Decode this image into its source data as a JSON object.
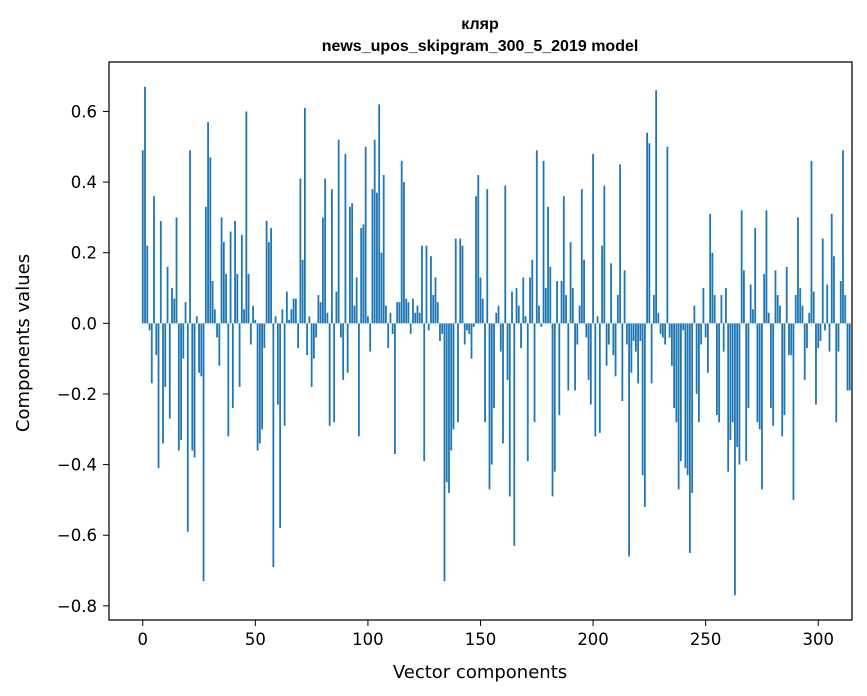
{
  "chart_data": {
    "type": "bar",
    "title": "кляр",
    "subtitle": "news_upos_skipgram_300_5_2019 model",
    "xlabel": "Vector components",
    "ylabel": "Components values",
    "xlim": [
      -15,
      315
    ],
    "ylim": [
      -0.84,
      0.74
    ],
    "xticks": [
      0,
      50,
      100,
      150,
      200,
      250,
      300
    ],
    "yticks": [
      -0.8,
      -0.6,
      -0.4,
      -0.2,
      0.0,
      0.2,
      0.4,
      0.6
    ],
    "xtick_labels": [
      "0",
      "50",
      "100",
      "150",
      "200",
      "250",
      "300"
    ],
    "ytick_labels": [
      "−0.8",
      "−0.6",
      "−0.4",
      "−0.2",
      "0.0",
      "0.2",
      "0.4",
      "0.6"
    ],
    "bar_color": "#1f77b4",
    "values": [
      0.49,
      0.67,
      0.22,
      -0.02,
      -0.17,
      0.36,
      -0.09,
      -0.41,
      0.29,
      -0.34,
      -0.18,
      0.16,
      -0.27,
      0.1,
      0.07,
      0.3,
      -0.36,
      -0.33,
      -0.1,
      0.06,
      -0.59,
      0.49,
      -0.36,
      -0.38,
      0.02,
      -0.14,
      -0.15,
      -0.73,
      0.33,
      0.57,
      0.47,
      0.12,
      0.04,
      -0.04,
      -0.12,
      0.3,
      0.23,
      0.14,
      -0.32,
      0.26,
      -0.24,
      0.29,
      0.14,
      -0.18,
      0.25,
      0.04,
      0.6,
      0.14,
      -0.06,
      0.05,
      0.01,
      -0.36,
      -0.34,
      -0.3,
      -0.07,
      0.29,
      0.23,
      0.27,
      -0.69,
      0.02,
      -0.23,
      -0.58,
      0.04,
      -0.29,
      0.09,
      0.01,
      0.04,
      0.07,
      0.07,
      -0.07,
      0.41,
      0.18,
      0.61,
      -0.09,
      0.02,
      -0.18,
      -0.1,
      -0.04,
      0.08,
      0.06,
      0.3,
      0.41,
      0.03,
      -0.29,
      0.38,
      -0.28,
      0.09,
      0.52,
      -0.04,
      -0.16,
      0.48,
      -0.14,
      0.33,
      0.34,
      0.05,
      0.13,
      -0.32,
      0.27,
      0.28,
      0.5,
      0.02,
      -0.08,
      0.38,
      0.52,
      0.37,
      0.62,
      0.2,
      0.42,
      0.05,
      -0.07,
      0.03,
      -0.03,
      -0.37,
      0.06,
      0.06,
      0.46,
      0.4,
      0.07,
      0.06,
      -0.03,
      0.07,
      0.03,
      0.05,
      0.03,
      0.22,
      -0.39,
      0.22,
      -0.02,
      0.19,
      0.08,
      0.13,
      0.06,
      -0.05,
      -0.03,
      -0.73,
      -0.45,
      -0.48,
      -0.36,
      -0.3,
      0.24,
      -0.28,
      0.24,
      0.22,
      -0.06,
      -0.02,
      -0.03,
      -0.1,
      -0.01,
      0.36,
      0.42,
      0.13,
      0.07,
      -0.28,
      0.38,
      -0.47,
      -0.4,
      -0.24,
      0.03,
      0.05,
      -0.08,
      -0.34,
      0.39,
      -0.16,
      -0.49,
      0.09,
      -0.63,
      0.1,
      0.05,
      -0.07,
      0.13,
      0.02,
      -0.39,
      0.13,
      0.18,
      -0.28,
      0.49,
      0.05,
      -0.01,
      0.46,
      0.1,
      0.33,
      0.16,
      -0.49,
      -0.42,
      0.12,
      -0.26,
      0.12,
      0.36,
      0.08,
      -0.19,
      0.23,
      0.1,
      -0.19,
      -0.06,
      0.05,
      0.38,
      0.18,
      -0.04,
      -0.16,
      -0.23,
      0.48,
      -0.32,
      0.02,
      -0.31,
      0.22,
      0.39,
      -0.12,
      -0.06,
      0.17,
      -0.09,
      -0.15,
      0.08,
      0.45,
      -0.22,
      0.15,
      -0.06,
      -0.66,
      -0.14,
      -0.05,
      -0.08,
      -0.17,
      -0.05,
      -0.43,
      -0.52,
      0.54,
      0.51,
      -0.17,
      0.08,
      0.66,
      0.03,
      -0.03,
      -0.04,
      -0.06,
      0.5,
      -0.04,
      -0.12,
      -0.24,
      -0.28,
      -0.47,
      -0.39,
      -0.02,
      -0.41,
      -0.43,
      -0.65,
      -0.48,
      0.05,
      -0.2,
      -0.28,
      -0.06,
      0.1,
      -0.04,
      -0.14,
      0.31,
      0.2,
      0.08,
      -0.26,
      -0.28,
      0.08,
      -0.08,
      0.1,
      -0.42,
      -0.33,
      -0.28,
      -0.77,
      -0.35,
      -0.4,
      0.32,
      0.15,
      -0.39,
      -0.24,
      0.11,
      0.04,
      0.27,
      -0.28,
      -0.3,
      -0.47,
      0.14,
      0.32,
      0.03,
      -0.24,
      -0.29,
      0.15,
      0.08,
      0.05,
      -0.32,
      -0.26,
      0.16,
      -0.09,
      -0.09,
      -0.5,
      0.08,
      0.3,
      0.1,
      0.05,
      -0.16,
      -0.07,
      0.03,
      0.46,
      0.09,
      -0.23,
      -0.07,
      -0.05,
      0.24,
      -0.02,
      0.11,
      -0.08,
      0.31,
      0.19,
      -0.28,
      -0.08,
      0.12,
      0.49,
      0.08,
      -0.19,
      -0.19
    ]
  }
}
